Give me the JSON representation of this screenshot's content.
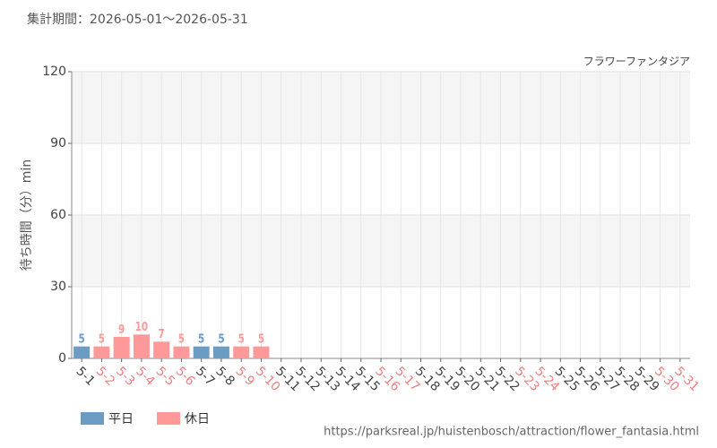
{
  "chart_data": {
    "type": "bar",
    "title": "集計期間：2026-05-01～2026-05-31",
    "subtitle": "フラワーファンタジア",
    "y_label": "待ち時間（分）min",
    "source": "https://parksreal.jp/huistenbosch/attraction/flower_fantasia.html",
    "categories": [
      "5-1",
      "5-2",
      "5-3",
      "5-4",
      "5-5",
      "5-6",
      "5-7",
      "5-8",
      "5-9",
      "5-10",
      "5-11",
      "5-12",
      "5-13",
      "5-14",
      "5-15",
      "5-16",
      "5-17",
      "5-18",
      "5-19",
      "5-20",
      "5-21",
      "5-22",
      "5-23",
      "5-24",
      "5-25",
      "5-26",
      "5-27",
      "5-28",
      "5-29",
      "5-30",
      "5-31"
    ],
    "category_colors": [
      "#444444",
      "#f08080",
      "#f08080",
      "#f08080",
      "#f08080",
      "#f08080",
      "#444444",
      "#444444",
      "#f08080",
      "#f08080",
      "#444444",
      "#444444",
      "#444444",
      "#444444",
      "#444444",
      "#f08080",
      "#f08080",
      "#444444",
      "#444444",
      "#444444",
      "#444444",
      "#444444",
      "#f08080",
      "#f08080",
      "#444444",
      "#444444",
      "#444444",
      "#444444",
      "#444444",
      "#f08080",
      "#f08080"
    ],
    "series": [
      {
        "name": "平日",
        "color": "#6a9cc4",
        "values": [
          5,
          null,
          null,
          null,
          null,
          null,
          5,
          5,
          null,
          null,
          null,
          null,
          null,
          null,
          null,
          null,
          null,
          null,
          null,
          null,
          null,
          null,
          null,
          null,
          null,
          null,
          null,
          null,
          null,
          null,
          null
        ]
      },
      {
        "name": "休日",
        "color": "#ff9999",
        "values": [
          null,
          5,
          9,
          10,
          7,
          5,
          null,
          null,
          5,
          5,
          null,
          null,
          null,
          null,
          null,
          null,
          null,
          null,
          null,
          null,
          null,
          null,
          null,
          null,
          null,
          null,
          null,
          null,
          null,
          null,
          null
        ]
      }
    ],
    "ylim": [
      0,
      120
    ],
    "yticks": [
      0,
      30,
      60,
      90,
      120
    ],
    "grid": true
  }
}
